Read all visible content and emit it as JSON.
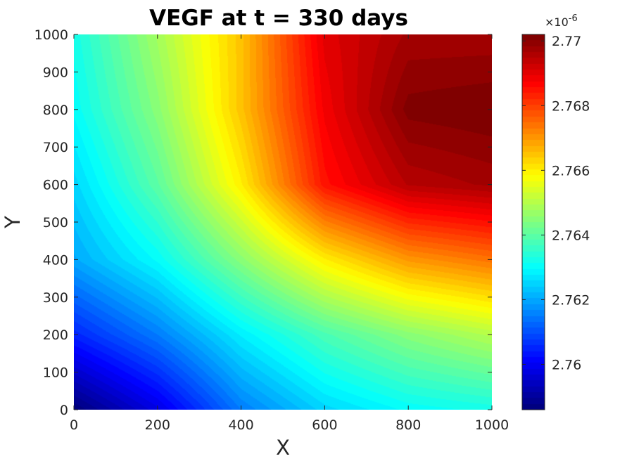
{
  "chart_data": {
    "type": "heatmap",
    "title": "VEGF at t = 330 days",
    "xlabel": "X",
    "ylabel": "Y",
    "xlim": [
      0,
      1000
    ],
    "ylim": [
      0,
      1000
    ],
    "x_ticks": [
      0,
      200,
      400,
      600,
      800,
      1000
    ],
    "y_ticks": [
      0,
      100,
      200,
      300,
      400,
      500,
      600,
      700,
      800,
      900,
      1000
    ],
    "colormap": "jet",
    "colorbar": {
      "min": 2.7586,
      "max": 2.7702,
      "ticks": [
        2.76,
        2.762,
        2.764,
        2.766,
        2.768,
        2.77
      ],
      "tick_labels": [
        "2.76",
        "2.762",
        "2.764",
        "2.766",
        "2.768",
        "2.77"
      ],
      "exponent_label": "×10",
      "exponent": "-6"
    },
    "grid_x": [
      0,
      200,
      400,
      600,
      800,
      1000
    ],
    "grid_y": [
      0,
      200,
      400,
      600,
      800,
      1000
    ],
    "z": [
      [
        2.7586,
        2.7598,
        2.7615,
        2.7625,
        2.763,
        2.7632
      ],
      [
        2.7605,
        2.7615,
        2.7628,
        2.7638,
        2.7645,
        2.765
      ],
      [
        2.762,
        2.763,
        2.7645,
        2.766,
        2.767,
        2.7674
      ],
      [
        2.7625,
        2.764,
        2.766,
        2.7685,
        2.7695,
        2.7697
      ],
      [
        2.763,
        2.7645,
        2.7665,
        2.7688,
        2.7701,
        2.7702
      ],
      [
        2.7632,
        2.7648,
        2.7665,
        2.769,
        2.7697,
        2.7697
      ]
    ]
  }
}
